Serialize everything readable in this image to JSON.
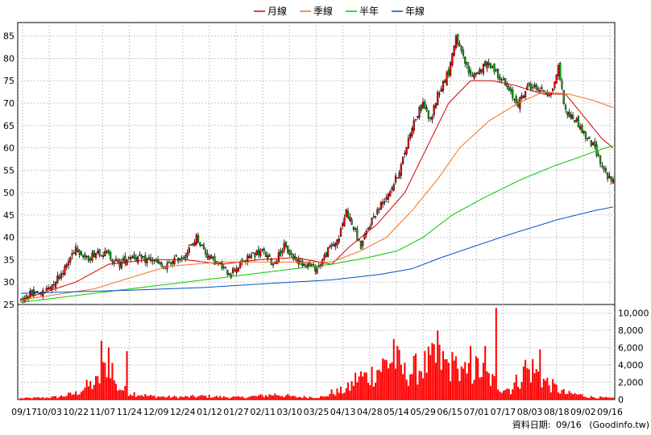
{
  "chart_data": {
    "type": "candlestick-with-volume",
    "legend": [
      {
        "name": "月線",
        "color": "#d40000"
      },
      {
        "name": "季線",
        "color": "#f07020"
      },
      {
        "name": "半年",
        "color": "#00c800"
      },
      {
        "name": "年線",
        "color": "#0050c8"
      }
    ],
    "price_axis": {
      "ylim": [
        25,
        88
      ],
      "ticks": [
        25,
        30,
        35,
        40,
        45,
        50,
        55,
        60,
        65,
        70,
        75,
        80,
        85
      ]
    },
    "volume_axis": {
      "ylim": [
        0,
        11000
      ],
      "ticks": [
        0,
        2000,
        4000,
        6000,
        8000,
        10000
      ],
      "tick_labels": [
        "0",
        "2,000",
        "4,000",
        "6,000",
        "8,000",
        "10,000"
      ]
    },
    "x_tick_labels": [
      "09/17",
      "10/03",
      "10/22",
      "11/07",
      "11/24",
      "12/09",
      "12/24",
      "01/12",
      "01/27",
      "02/11",
      "03/10",
      "03/25",
      "04/13",
      "04/28",
      "05/14",
      "05/29",
      "06/15",
      "07/01",
      "07/17",
      "08/03",
      "08/18",
      "09/02",
      "09/16"
    ],
    "close_anchors": [
      [
        0,
        26
      ],
      [
        8,
        28
      ],
      [
        12,
        27.5
      ],
      [
        18,
        30
      ],
      [
        24,
        33
      ],
      [
        30,
        38
      ],
      [
        36,
        35
      ],
      [
        42,
        37
      ],
      [
        48,
        36
      ],
      [
        54,
        34
      ],
      [
        60,
        36
      ],
      [
        66,
        35
      ],
      [
        72,
        35
      ],
      [
        78,
        33
      ],
      [
        84,
        35
      ],
      [
        90,
        36
      ],
      [
        96,
        40
      ],
      [
        102,
        36
      ],
      [
        108,
        34
      ],
      [
        114,
        32
      ],
      [
        120,
        34
      ],
      [
        126,
        36
      ],
      [
        132,
        37
      ],
      [
        138,
        34
      ],
      [
        144,
        38
      ],
      [
        150,
        35
      ],
      [
        156,
        34
      ],
      [
        162,
        33
      ],
      [
        168,
        37
      ],
      [
        174,
        40
      ],
      [
        178,
        46
      ],
      [
        182,
        42
      ],
      [
        186,
        38
      ],
      [
        192,
        44
      ],
      [
        198,
        48
      ],
      [
        204,
        52
      ],
      [
        208,
        56
      ],
      [
        214,
        65
      ],
      [
        220,
        70
      ],
      [
        224,
        66
      ],
      [
        228,
        72
      ],
      [
        234,
        77
      ],
      [
        238,
        85
      ],
      [
        242,
        80
      ],
      [
        246,
        76
      ],
      [
        250,
        77
      ],
      [
        256,
        79
      ],
      [
        262,
        76
      ],
      [
        268,
        72
      ],
      [
        272,
        70
      ],
      [
        278,
        74
      ],
      [
        284,
        73
      ],
      [
        290,
        72
      ],
      [
        294,
        78
      ],
      [
        298,
        68
      ],
      [
        304,
        66
      ],
      [
        308,
        63
      ],
      [
        314,
        60
      ],
      [
        318,
        56
      ],
      [
        322,
        53
      ],
      [
        324,
        52.5
      ]
    ],
    "volume_anchors": [
      [
        0,
        150
      ],
      [
        10,
        200
      ],
      [
        20,
        300
      ],
      [
        30,
        700
      ],
      [
        36,
        1500
      ],
      [
        42,
        2000
      ],
      [
        46,
        3500
      ],
      [
        48,
        5500
      ],
      [
        52,
        1500
      ],
      [
        60,
        800
      ],
      [
        70,
        400
      ],
      [
        80,
        300
      ],
      [
        90,
        300
      ],
      [
        100,
        400
      ],
      [
        110,
        300
      ],
      [
        120,
        250
      ],
      [
        130,
        400
      ],
      [
        140,
        600
      ],
      [
        150,
        300
      ],
      [
        160,
        300
      ],
      [
        166,
        300
      ],
      [
        170,
        800
      ],
      [
        176,
        1000
      ],
      [
        180,
        1400
      ],
      [
        184,
        2600
      ],
      [
        190,
        2600
      ],
      [
        196,
        3600
      ],
      [
        204,
        4800
      ],
      [
        210,
        3000
      ],
      [
        216,
        3500
      ],
      [
        222,
        4000
      ],
      [
        228,
        4500
      ],
      [
        232,
        4200
      ],
      [
        236,
        3800
      ],
      [
        240,
        2800
      ],
      [
        246,
        3000
      ],
      [
        250,
        3600
      ],
      [
        256,
        2500
      ],
      [
        262,
        1500
      ],
      [
        268,
        1200
      ],
      [
        274,
        2800
      ],
      [
        280,
        3500
      ],
      [
        286,
        2200
      ],
      [
        292,
        1400
      ],
      [
        298,
        700
      ],
      [
        304,
        600
      ],
      [
        312,
        300
      ],
      [
        320,
        200
      ],
      [
        324,
        150
      ]
    ],
    "volume_spikes": [
      [
        44,
        6800
      ],
      [
        58,
        5600
      ],
      [
        204,
        7000
      ],
      [
        226,
        6400
      ],
      [
        228,
        8000
      ],
      [
        238,
        5000
      ],
      [
        246,
        6200
      ],
      [
        254,
        6200
      ],
      [
        260,
        10600
      ],
      [
        276,
        4600
      ],
      [
        284,
        5800
      ]
    ],
    "ma_anchors": {
      "month": [
        [
          0,
          26
        ],
        [
          30,
          30
        ],
        [
          48,
          34
        ],
        [
          70,
          35
        ],
        [
          90,
          35
        ],
        [
          110,
          34
        ],
        [
          130,
          35
        ],
        [
          150,
          35.5
        ],
        [
          170,
          34
        ],
        [
          180,
          38
        ],
        [
          195,
          43
        ],
        [
          210,
          50
        ],
        [
          222,
          60
        ],
        [
          234,
          70
        ],
        [
          246,
          75
        ],
        [
          258,
          75
        ],
        [
          270,
          74
        ],
        [
          286,
          72
        ],
        [
          298,
          72
        ],
        [
          310,
          66
        ],
        [
          318,
          62
        ],
        [
          324,
          60
        ]
      ],
      "quarter": [
        [
          0,
          26
        ],
        [
          40,
          28.5
        ],
        [
          60,
          31
        ],
        [
          80,
          33.5
        ],
        [
          110,
          34.5
        ],
        [
          140,
          34.5
        ],
        [
          170,
          34.5
        ],
        [
          186,
          37
        ],
        [
          200,
          40
        ],
        [
          214,
          46
        ],
        [
          228,
          53
        ],
        [
          240,
          60
        ],
        [
          256,
          66
        ],
        [
          272,
          70
        ],
        [
          286,
          72.5
        ],
        [
          300,
          72
        ],
        [
          314,
          70.5
        ],
        [
          324,
          69
        ]
      ],
      "half": [
        [
          0,
          25.5
        ],
        [
          40,
          27.5
        ],
        [
          80,
          29.5
        ],
        [
          110,
          31
        ],
        [
          140,
          32.5
        ],
        [
          170,
          34
        ],
        [
          190,
          35.5
        ],
        [
          206,
          37
        ],
        [
          220,
          40
        ],
        [
          236,
          45
        ],
        [
          254,
          49
        ],
        [
          274,
          53
        ],
        [
          292,
          56
        ],
        [
          306,
          58
        ],
        [
          316,
          59.5
        ],
        [
          324,
          60.5
        ]
      ],
      "year": [
        [
          0,
          27.5
        ],
        [
          60,
          28.2
        ],
        [
          100,
          28.8
        ],
        [
          140,
          29.8
        ],
        [
          170,
          30.5
        ],
        [
          196,
          31.7
        ],
        [
          214,
          33
        ],
        [
          230,
          35.5
        ],
        [
          248,
          38
        ],
        [
          270,
          41
        ],
        [
          294,
          44
        ],
        [
          314,
          46
        ],
        [
          324,
          46.8
        ]
      ]
    },
    "grid": true
  },
  "footer": {
    "label": "資料日期:",
    "date": "09/16",
    "source": "(Goodinfo.tw)"
  }
}
